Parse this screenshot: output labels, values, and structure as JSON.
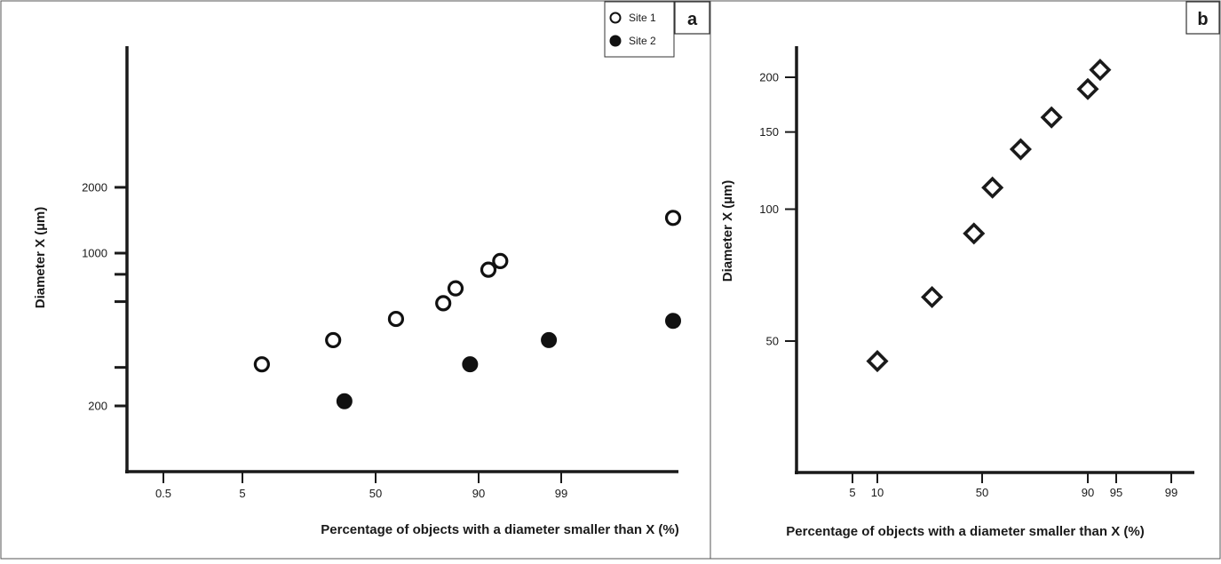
{
  "chart_data": [
    {
      "panel": "a",
      "type": "scatter",
      "xlabel": "Percentage of objects with a diameter smaller than X (%)",
      "ylabel": "Diameter X (µm)",
      "x_scale": "probability",
      "y_scale": "log",
      "xticks": [
        "0.5",
        "5",
        "50",
        "90",
        "99"
      ],
      "yticks": [
        "200",
        "1000",
        "2000"
      ],
      "legend": {
        "placement": "top-right",
        "entries": [
          "Site 1",
          "Site 2"
        ]
      },
      "series": [
        {
          "name": "Site 1",
          "marker": "open-circle",
          "x": [
            8,
            30,
            60,
            80,
            84,
            92,
            94,
            99.9
          ],
          "y": [
            310,
            400,
            500,
            590,
            690,
            840,
            920,
            1450
          ]
        },
        {
          "name": "Site 2",
          "marker": "filled-circle",
          "x": [
            35,
            88,
            98.5,
            99.9
          ],
          "y": [
            210,
            310,
            400,
            490
          ]
        }
      ]
    },
    {
      "panel": "b",
      "type": "scatter",
      "xlabel": "Percentage of objects with a diameter smaller than X (%)",
      "ylabel": "Diameter X (µm)",
      "x_scale": "probability",
      "y_scale": "log",
      "xticks": [
        "5",
        "10",
        "50",
        "90",
        "95",
        "99"
      ],
      "yticks": [
        "50",
        "100",
        "150",
        "200"
      ],
      "series": [
        {
          "marker": "open-diamond",
          "x": [
            10,
            27,
            46,
            55,
            68,
            80,
            90,
            92.5
          ],
          "y": [
            45,
            63,
            88,
            112,
            137,
            162,
            188,
            208
          ]
        }
      ]
    }
  ]
}
